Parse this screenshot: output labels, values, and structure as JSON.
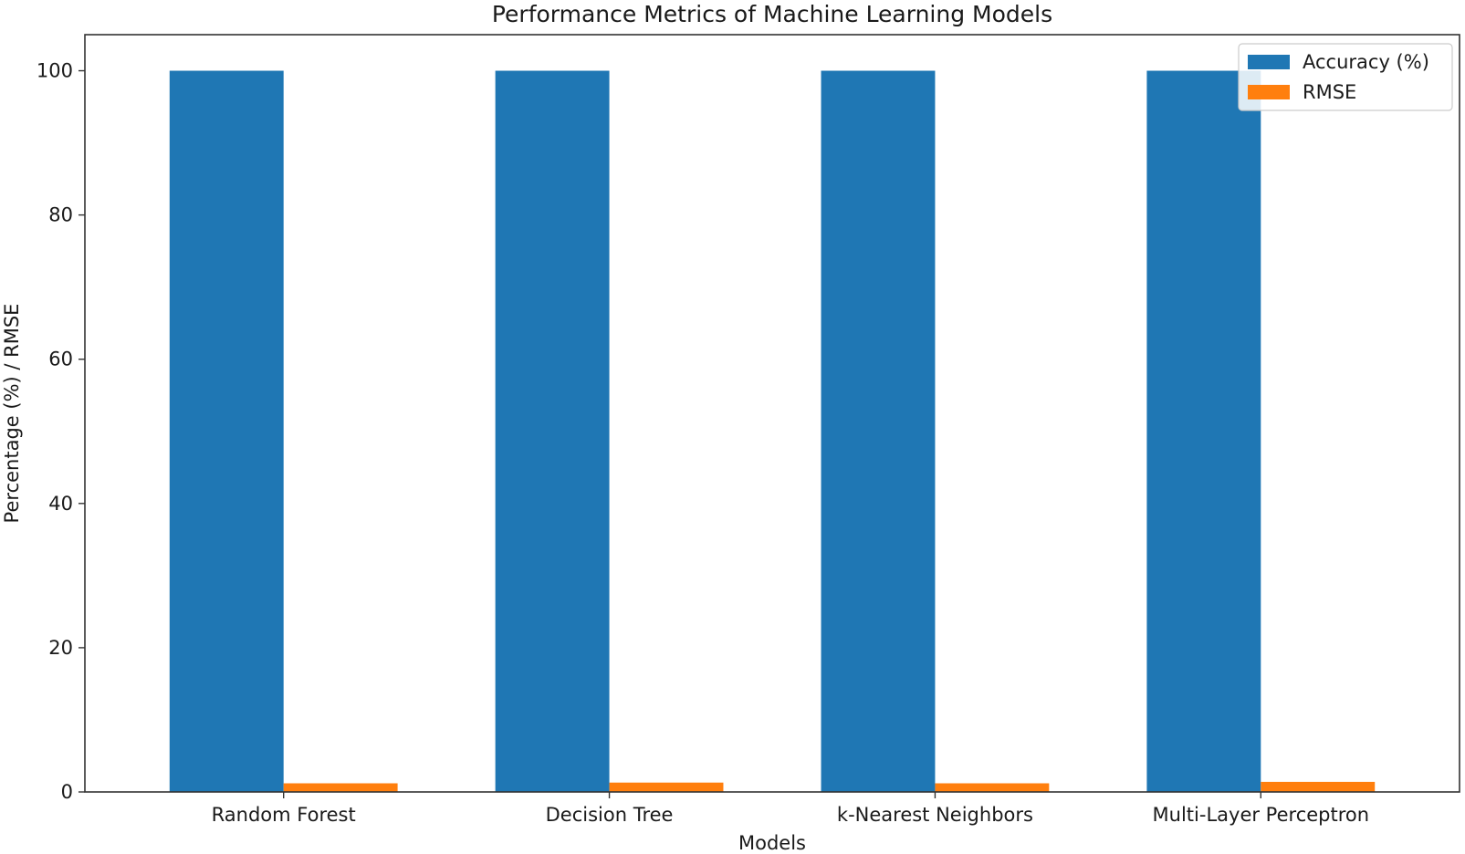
{
  "chart_data": {
    "type": "bar",
    "title": "Performance Metrics of Machine Learning Models",
    "xlabel": "Models",
    "ylabel": "Percentage (%) / RMSE",
    "categories": [
      "Random Forest",
      "Decision Tree",
      "k-Nearest Neighbors",
      "Multi-Layer Perceptron"
    ],
    "series": [
      {
        "name": "Accuracy (%)",
        "color": "#1f77b4",
        "values": [
          100.0,
          100.0,
          100.0,
          100.0
        ]
      },
      {
        "name": "RMSE",
        "color": "#ff7f0e",
        "values": [
          1.2,
          1.3,
          1.2,
          1.4
        ]
      }
    ],
    "ylim": [
      0,
      105
    ],
    "yticks": [
      0,
      20,
      40,
      60,
      80,
      100
    ],
    "grid": false,
    "legend_position": "top-right"
  }
}
